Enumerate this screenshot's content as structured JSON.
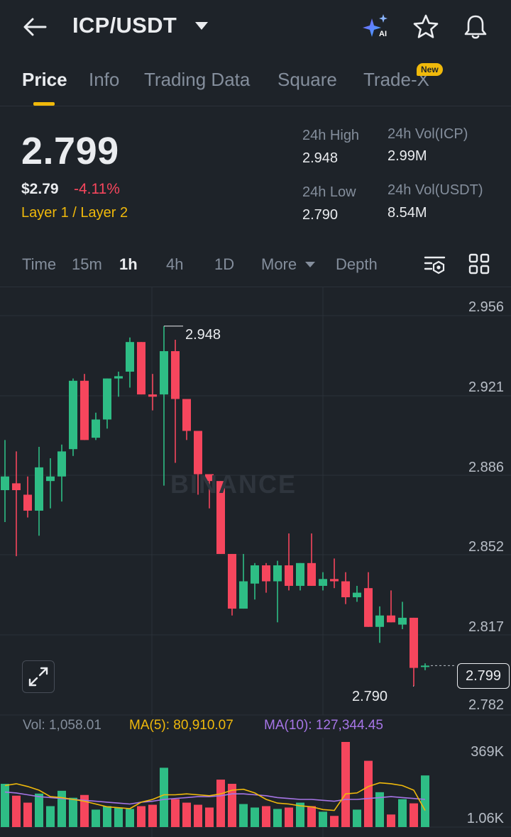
{
  "header": {
    "pair": "ICP/USDT",
    "icons": [
      "back-arrow-icon",
      "ai-sparkle-icon",
      "star-icon",
      "bell-icon"
    ]
  },
  "tabs": [
    {
      "label": "Price",
      "active": true
    },
    {
      "label": "Info"
    },
    {
      "label": "Trading Data"
    },
    {
      "label": "Square"
    },
    {
      "label": "Trade-X"
    }
  ],
  "new_badge": "New",
  "ticker": {
    "last_price": "2.799",
    "usd_price": "$2.79",
    "change": "-4.11%",
    "tags": "Layer 1 / Layer 2",
    "high_label": "24h High",
    "high_value": "2.948",
    "low_label": "24h Low",
    "low_value": "2.790",
    "vol_icp_label": "24h Vol(ICP)",
    "vol_icp_value": "2.99M",
    "vol_usdt_label": "24h Vol(USDT)",
    "vol_usdt_value": "8.54M"
  },
  "intervals": [
    {
      "label": "Time"
    },
    {
      "label": "15m"
    },
    {
      "label": "1h",
      "active": true
    },
    {
      "label": "4h"
    },
    {
      "label": "1D"
    },
    {
      "label": "More"
    },
    {
      "label": "Depth"
    }
  ],
  "chart": {
    "price_axis": [
      "2.956",
      "2.921",
      "2.886",
      "2.852",
      "2.817",
      "2.782"
    ],
    "watermark": "BINANCE",
    "high_marker": "2.948",
    "low_marker": "2.790",
    "last_price_box": "2.799",
    "volume_axis": [
      "369K",
      "1.06K"
    ],
    "vol_legend": {
      "vol": "Vol: 1,058.01",
      "ma5": "MA(5): 80,910.07",
      "ma10": "MA(10): 127,344.45"
    }
  },
  "chart_data": {
    "type": "candlestick",
    "price_range": [
      2.775,
      2.965
    ],
    "candles": [
      {
        "o": 2.876,
        "h": 2.898,
        "l": 2.862,
        "c": 2.882
      },
      {
        "o": 2.879,
        "h": 2.893,
        "l": 2.847,
        "c": 2.876
      },
      {
        "o": 2.874,
        "h": 2.882,
        "l": 2.864,
        "c": 2.867
      },
      {
        "o": 2.867,
        "h": 2.895,
        "l": 2.856,
        "c": 2.886
      },
      {
        "o": 2.88,
        "h": 2.89,
        "l": 2.868,
        "c": 2.882
      },
      {
        "o": 2.882,
        "h": 2.896,
        "l": 2.871,
        "c": 2.893
      },
      {
        "o": 2.894,
        "h": 2.925,
        "l": 2.891,
        "c": 2.924
      },
      {
        "o": 2.924,
        "h": 2.927,
        "l": 2.898,
        "c": 2.898
      },
      {
        "o": 2.899,
        "h": 2.91,
        "l": 2.898,
        "c": 2.907
      },
      {
        "o": 2.907,
        "h": 2.925,
        "l": 2.903,
        "c": 2.925
      },
      {
        "o": 2.925,
        "h": 2.928,
        "l": 2.917,
        "c": 2.926
      },
      {
        "o": 2.928,
        "h": 2.943,
        "l": 2.921,
        "c": 2.941
      },
      {
        "o": 2.941,
        "h": 2.941,
        "l": 2.918,
        "c": 2.918
      },
      {
        "o": 2.918,
        "h": 2.927,
        "l": 2.911,
        "c": 2.917
      },
      {
        "o": 2.918,
        "h": 2.948,
        "l": 2.878,
        "c": 2.937
      },
      {
        "o": 2.937,
        "h": 2.942,
        "l": 2.888,
        "c": 2.916
      },
      {
        "o": 2.916,
        "h": 2.916,
        "l": 2.898,
        "c": 2.902
      },
      {
        "o": 2.902,
        "h": 2.902,
        "l": 2.874,
        "c": 2.883
      },
      {
        "o": 2.883,
        "h": 2.883,
        "l": 2.868,
        "c": 2.88
      },
      {
        "o": 2.88,
        "h": 2.88,
        "l": 2.848,
        "c": 2.848
      },
      {
        "o": 2.848,
        "h": 2.848,
        "l": 2.821,
        "c": 2.824
      },
      {
        "o": 2.824,
        "h": 2.848,
        "l": 2.824,
        "c": 2.836
      },
      {
        "o": 2.835,
        "h": 2.844,
        "l": 2.828,
        "c": 2.843
      },
      {
        "o": 2.843,
        "h": 2.844,
        "l": 2.831,
        "c": 2.836
      },
      {
        "o": 2.836,
        "h": 2.845,
        "l": 2.818,
        "c": 2.843
      },
      {
        "o": 2.843,
        "h": 2.857,
        "l": 2.832,
        "c": 2.834
      },
      {
        "o": 2.834,
        "h": 2.844,
        "l": 2.832,
        "c": 2.844
      },
      {
        "o": 2.844,
        "h": 2.857,
        "l": 2.834,
        "c": 2.834
      },
      {
        "o": 2.834,
        "h": 2.84,
        "l": 2.832,
        "c": 2.837
      },
      {
        "o": 2.837,
        "h": 2.846,
        "l": 2.833,
        "c": 2.836
      },
      {
        "o": 2.836,
        "h": 2.84,
        "l": 2.826,
        "c": 2.829
      },
      {
        "o": 2.829,
        "h": 2.834,
        "l": 2.827,
        "c": 2.831
      },
      {
        "o": 2.833,
        "h": 2.84,
        "l": 2.816,
        "c": 2.816
      },
      {
        "o": 2.816,
        "h": 2.825,
        "l": 2.809,
        "c": 2.821
      },
      {
        "o": 2.821,
        "h": 2.832,
        "l": 2.818,
        "c": 2.818
      },
      {
        "o": 2.817,
        "h": 2.827,
        "l": 2.815,
        "c": 2.82
      },
      {
        "o": 2.82,
        "h": 2.82,
        "l": 2.79,
        "c": 2.798
      },
      {
        "o": 2.799,
        "h": 2.8,
        "l": 2.797,
        "c": 2.799
      }
    ],
    "volume": [
      62,
      45,
      35,
      48,
      30,
      52,
      42,
      46,
      25,
      30,
      28,
      26,
      30,
      32,
      85,
      40,
      35,
      32,
      28,
      68,
      62,
      33,
      28,
      30,
      26,
      28,
      35,
      30,
      22,
      16,
      122,
      25,
      95,
      50,
      18,
      40,
      34,
      74
    ],
    "ma5_level": [
      0.45,
      0.47,
      0.44,
      0.4,
      0.33,
      0.32,
      0.3,
      0.28,
      0.25,
      0.22,
      0.21,
      0.2,
      0.27,
      0.3,
      0.35,
      0.35,
      0.36,
      0.35,
      0.34,
      0.36,
      0.4,
      0.41,
      0.37,
      0.3,
      0.26,
      0.25,
      0.23,
      0.22,
      0.19,
      0.18,
      0.36,
      0.37,
      0.44,
      0.48,
      0.47,
      0.45,
      0.4,
      0.18
    ],
    "ma10_level": [
      0.38,
      0.37,
      0.35,
      0.33,
      0.32,
      0.31,
      0.3,
      0.29,
      0.28,
      0.27,
      0.26,
      0.25,
      0.27,
      0.28,
      0.3,
      0.31,
      0.32,
      0.33,
      0.33,
      0.34,
      0.36,
      0.36,
      0.35,
      0.34,
      0.32,
      0.31,
      0.3,
      0.3,
      0.29,
      0.28,
      0.3,
      0.3,
      0.31,
      0.32,
      0.33,
      0.32,
      0.31,
      0.3
    ]
  },
  "colors": {
    "up": "#2ebd85",
    "down": "#f6465d",
    "ma5": "#f0b90b",
    "ma10": "#a675e6",
    "accent": "#f0b90b"
  }
}
